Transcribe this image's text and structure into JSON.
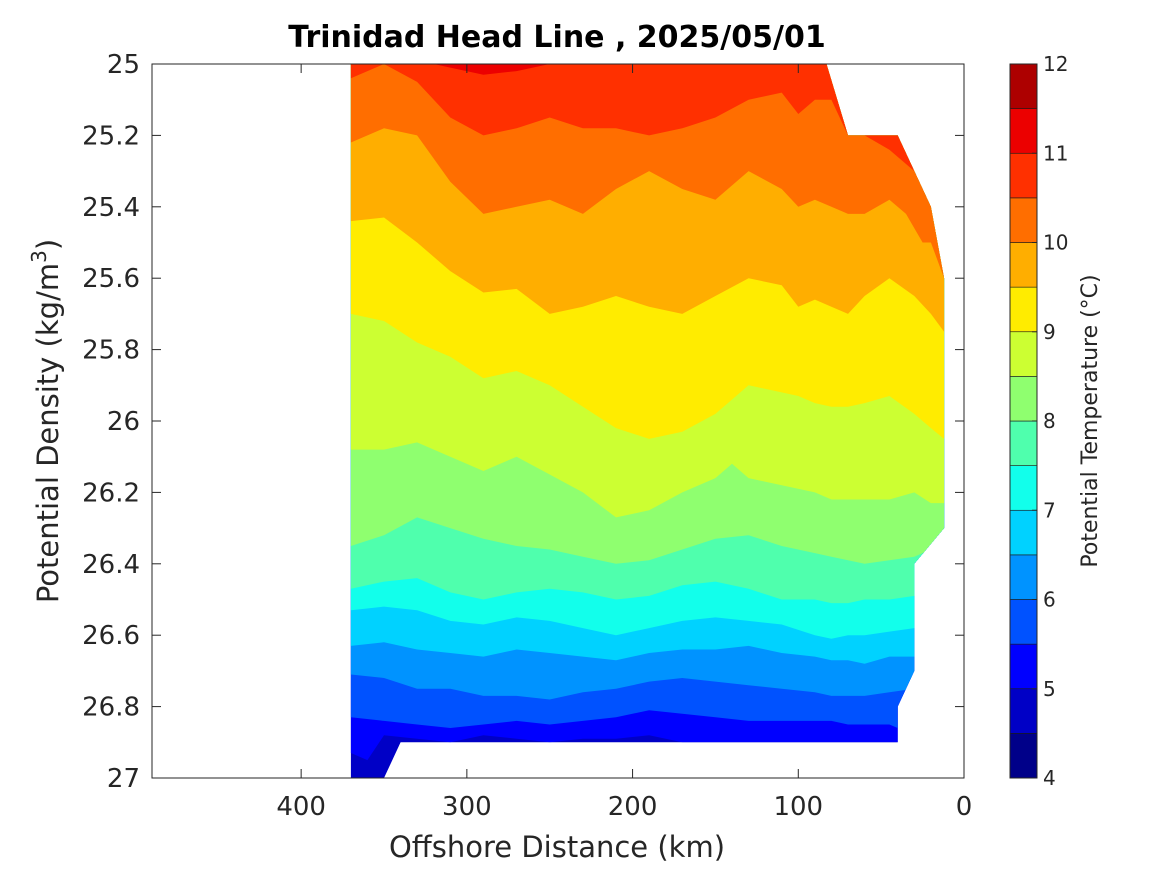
{
  "chart_data": {
    "type": "contourf",
    "title": "Trinidad Head Line , 2025/05/01",
    "xlabel": "Offshore Distance (km)",
    "ylabel_base": "Potential Density (kg/m",
    "ylabel_sup": "3",
    "ylabel_end": ")",
    "colorbar_label": "Potential Temperature (°C)",
    "xlim": [
      490,
      0
    ],
    "ylim": [
      25,
      27
    ],
    "x_ticks": [
      400,
      300,
      200,
      100,
      0
    ],
    "y_ticks": [
      25,
      25.2,
      25.4,
      25.6,
      25.8,
      26,
      26.2,
      26.4,
      26.6,
      26.8,
      27
    ],
    "x_tick_labels": [
      "400",
      "300",
      "200",
      "100",
      "0"
    ],
    "y_tick_labels": [
      "25",
      "25.2",
      "25.4",
      "25.6",
      "25.8",
      "26",
      "26.2",
      "26.4",
      "26.6",
      "26.8",
      "27"
    ],
    "colorbar_range": [
      4,
      12
    ],
    "colorbar_ticks": [
      4,
      5,
      6,
      7,
      8,
      9,
      10,
      11,
      12
    ],
    "colorbar_tick_labels": [
      "4",
      "5",
      "6",
      "7",
      "8",
      "9",
      "10",
      "11",
      "12"
    ],
    "level_step": 0.5,
    "level_colors": [
      "#000089",
      "#0000c6",
      "#0000ff",
      "#0052ff",
      "#0093ff",
      "#00d2ff",
      "#12ffeb",
      "#4fffad",
      "#8fff6f",
      "#ccff32",
      "#ffec00",
      "#ffae00",
      "#ff6e00",
      "#ff3000",
      "#ec0000",
      "#ad0000"
    ],
    "data_extent": {
      "x_min_km": 12,
      "x_max_km": 370,
      "sigma_min": 25,
      "sigma_max": 27,
      "upper_right_edge": [
        [
          83,
          25.0
        ],
        [
          70,
          25.2
        ],
        [
          40,
          25.2
        ],
        [
          20,
          25.4
        ],
        [
          12,
          25.6
        ],
        [
          12,
          26.3
        ],
        [
          30,
          26.4
        ],
        [
          30,
          26.7
        ],
        [
          40,
          26.8
        ],
        [
          40,
          26.9
        ]
      ],
      "bottom_edge": [
        [
          370,
          27.0
        ],
        [
          350,
          27.0
        ],
        [
          340,
          26.9
        ],
        [
          40,
          26.9
        ]
      ]
    },
    "isotherms": [
      {
        "temperature": 11.0,
        "points": [
          [
            370,
            24.99
          ],
          [
            330,
            24.99
          ],
          [
            310,
            25.01
          ],
          [
            290,
            25.03
          ],
          [
            270,
            25.02
          ],
          [
            250,
            25.0
          ],
          [
            230,
            25.0
          ],
          [
            210,
            25.0
          ],
          [
            190,
            25.0
          ],
          [
            170,
            25.0
          ],
          [
            150,
            25.0
          ],
          [
            130,
            25.0
          ],
          [
            110,
            25.0
          ],
          [
            90,
            25.0
          ]
        ]
      },
      {
        "temperature": 10.5,
        "points": [
          [
            370,
            25.04
          ],
          [
            350,
            25.0
          ],
          [
            330,
            25.05
          ],
          [
            310,
            25.15
          ],
          [
            290,
            25.2
          ],
          [
            270,
            25.18
          ],
          [
            250,
            25.15
          ],
          [
            230,
            25.18
          ],
          [
            210,
            25.18
          ],
          [
            190,
            25.2
          ],
          [
            170,
            25.18
          ],
          [
            150,
            25.15
          ],
          [
            130,
            25.1
          ],
          [
            110,
            25.08
          ],
          [
            100,
            25.14
          ],
          [
            90,
            25.1
          ],
          [
            80,
            25.1
          ],
          [
            70,
            25.2
          ],
          [
            60,
            25.2
          ],
          [
            45,
            25.24
          ],
          [
            30,
            25.3
          ],
          [
            20,
            25.4
          ]
        ]
      },
      {
        "temperature": 10.0,
        "points": [
          [
            370,
            25.22
          ],
          [
            350,
            25.18
          ],
          [
            330,
            25.2
          ],
          [
            310,
            25.33
          ],
          [
            290,
            25.42
          ],
          [
            270,
            25.4
          ],
          [
            250,
            25.38
          ],
          [
            230,
            25.42
          ],
          [
            210,
            25.35
          ],
          [
            190,
            25.3
          ],
          [
            170,
            25.35
          ],
          [
            150,
            25.38
          ],
          [
            130,
            25.3
          ],
          [
            110,
            25.35
          ],
          [
            100,
            25.4
          ],
          [
            90,
            25.38
          ],
          [
            80,
            25.4
          ],
          [
            70,
            25.42
          ],
          [
            60,
            25.42
          ],
          [
            45,
            25.38
          ],
          [
            35,
            25.42
          ],
          [
            25,
            25.5
          ],
          [
            20,
            25.5
          ],
          [
            12,
            25.6
          ]
        ]
      },
      {
        "temperature": 9.5,
        "points": [
          [
            370,
            25.44
          ],
          [
            350,
            25.43
          ],
          [
            330,
            25.5
          ],
          [
            310,
            25.58
          ],
          [
            290,
            25.64
          ],
          [
            270,
            25.63
          ],
          [
            250,
            25.7
          ],
          [
            230,
            25.68
          ],
          [
            210,
            25.65
          ],
          [
            190,
            25.68
          ],
          [
            170,
            25.7
          ],
          [
            150,
            25.65
          ],
          [
            130,
            25.6
          ],
          [
            110,
            25.62
          ],
          [
            100,
            25.68
          ],
          [
            90,
            25.66
          ],
          [
            80,
            25.68
          ],
          [
            70,
            25.7
          ],
          [
            60,
            25.65
          ],
          [
            45,
            25.6
          ],
          [
            30,
            25.65
          ],
          [
            20,
            25.7
          ],
          [
            12,
            25.75
          ]
        ]
      },
      {
        "temperature": 9.0,
        "points": [
          [
            370,
            25.7
          ],
          [
            350,
            25.72
          ],
          [
            330,
            25.78
          ],
          [
            310,
            25.82
          ],
          [
            290,
            25.88
          ],
          [
            270,
            25.86
          ],
          [
            250,
            25.9
          ],
          [
            230,
            25.96
          ],
          [
            210,
            26.02
          ],
          [
            190,
            26.05
          ],
          [
            170,
            26.03
          ],
          [
            150,
            25.98
          ],
          [
            130,
            25.9
          ],
          [
            110,
            25.92
          ],
          [
            100,
            25.93
          ],
          [
            90,
            25.95
          ],
          [
            80,
            25.96
          ],
          [
            70,
            25.96
          ],
          [
            60,
            25.95
          ],
          [
            45,
            25.93
          ],
          [
            30,
            25.98
          ],
          [
            20,
            26.02
          ],
          [
            12,
            26.05
          ]
        ]
      },
      {
        "temperature": 8.5,
        "points": [
          [
            370,
            26.08
          ],
          [
            350,
            26.08
          ],
          [
            330,
            26.06
          ],
          [
            310,
            26.1
          ],
          [
            290,
            26.14
          ],
          [
            270,
            26.1
          ],
          [
            250,
            26.15
          ],
          [
            230,
            26.2
          ],
          [
            210,
            26.27
          ],
          [
            190,
            26.25
          ],
          [
            170,
            26.2
          ],
          [
            150,
            26.16
          ],
          [
            140,
            26.12
          ],
          [
            130,
            26.16
          ],
          [
            110,
            26.18
          ],
          [
            90,
            26.2
          ],
          [
            80,
            26.22
          ],
          [
            70,
            26.22
          ],
          [
            60,
            26.22
          ],
          [
            45,
            26.22
          ],
          [
            30,
            26.2
          ],
          [
            20,
            26.23
          ],
          [
            12,
            26.23
          ]
        ]
      },
      {
        "temperature": 8.0,
        "points": [
          [
            370,
            26.35
          ],
          [
            350,
            26.32
          ],
          [
            330,
            26.27
          ],
          [
            310,
            26.3
          ],
          [
            290,
            26.33
          ],
          [
            270,
            26.35
          ],
          [
            250,
            26.36
          ],
          [
            230,
            26.38
          ],
          [
            210,
            26.4
          ],
          [
            190,
            26.39
          ],
          [
            170,
            26.36
          ],
          [
            150,
            26.33
          ],
          [
            130,
            26.32
          ],
          [
            110,
            26.35
          ],
          [
            90,
            26.37
          ],
          [
            80,
            26.38
          ],
          [
            70,
            26.39
          ],
          [
            60,
            26.4
          ],
          [
            45,
            26.39
          ],
          [
            30,
            26.38
          ],
          [
            20,
            26.36
          ],
          [
            12,
            26.3
          ]
        ]
      },
      {
        "temperature": 7.5,
        "points": [
          [
            370,
            26.47
          ],
          [
            350,
            26.45
          ],
          [
            330,
            26.44
          ],
          [
            310,
            26.48
          ],
          [
            290,
            26.5
          ],
          [
            270,
            26.48
          ],
          [
            250,
            26.47
          ],
          [
            230,
            26.48
          ],
          [
            210,
            26.5
          ],
          [
            190,
            26.49
          ],
          [
            170,
            26.46
          ],
          [
            150,
            26.45
          ],
          [
            130,
            26.47
          ],
          [
            110,
            26.5
          ],
          [
            90,
            26.5
          ],
          [
            80,
            26.51
          ],
          [
            70,
            26.51
          ],
          [
            60,
            26.5
          ],
          [
            45,
            26.5
          ],
          [
            30,
            26.49
          ]
        ]
      },
      {
        "temperature": 7.0,
        "points": [
          [
            370,
            26.53
          ],
          [
            350,
            26.52
          ],
          [
            330,
            26.53
          ],
          [
            310,
            26.56
          ],
          [
            290,
            26.57
          ],
          [
            270,
            26.55
          ],
          [
            250,
            26.56
          ],
          [
            230,
            26.58
          ],
          [
            210,
            26.6
          ],
          [
            190,
            26.58
          ],
          [
            170,
            26.56
          ],
          [
            150,
            26.55
          ],
          [
            130,
            26.56
          ],
          [
            110,
            26.57
          ],
          [
            90,
            26.6
          ],
          [
            80,
            26.61
          ],
          [
            70,
            26.6
          ],
          [
            60,
            26.6
          ],
          [
            45,
            26.59
          ],
          [
            30,
            26.58
          ]
        ]
      },
      {
        "temperature": 6.5,
        "points": [
          [
            370,
            26.63
          ],
          [
            350,
            26.62
          ],
          [
            330,
            26.64
          ],
          [
            310,
            26.65
          ],
          [
            290,
            26.66
          ],
          [
            270,
            26.64
          ],
          [
            250,
            26.65
          ],
          [
            230,
            26.66
          ],
          [
            210,
            26.67
          ],
          [
            190,
            26.65
          ],
          [
            170,
            26.64
          ],
          [
            150,
            26.64
          ],
          [
            130,
            26.63
          ],
          [
            110,
            26.65
          ],
          [
            90,
            26.66
          ],
          [
            80,
            26.67
          ],
          [
            70,
            26.67
          ],
          [
            60,
            26.68
          ],
          [
            45,
            26.66
          ],
          [
            30,
            26.66
          ]
        ]
      },
      {
        "temperature": 6.0,
        "points": [
          [
            370,
            26.71
          ],
          [
            350,
            26.72
          ],
          [
            330,
            26.75
          ],
          [
            310,
            26.75
          ],
          [
            290,
            26.77
          ],
          [
            270,
            26.77
          ],
          [
            250,
            26.78
          ],
          [
            230,
            26.76
          ],
          [
            210,
            26.75
          ],
          [
            190,
            26.73
          ],
          [
            170,
            26.72
          ],
          [
            150,
            26.73
          ],
          [
            130,
            26.74
          ],
          [
            110,
            26.75
          ],
          [
            90,
            26.76
          ],
          [
            80,
            26.77
          ],
          [
            70,
            26.77
          ],
          [
            60,
            26.77
          ],
          [
            45,
            26.76
          ],
          [
            30,
            26.75
          ]
        ]
      },
      {
        "temperature": 5.5,
        "points": [
          [
            370,
            26.83
          ],
          [
            350,
            26.84
          ],
          [
            330,
            26.85
          ],
          [
            310,
            26.86
          ],
          [
            290,
            26.85
          ],
          [
            270,
            26.84
          ],
          [
            250,
            26.85
          ],
          [
            230,
            26.84
          ],
          [
            210,
            26.83
          ],
          [
            190,
            26.81
          ],
          [
            170,
            26.82
          ],
          [
            150,
            26.83
          ],
          [
            130,
            26.84
          ],
          [
            110,
            26.84
          ],
          [
            90,
            26.84
          ],
          [
            80,
            26.84
          ],
          [
            70,
            26.85
          ],
          [
            60,
            26.85
          ],
          [
            45,
            26.85
          ],
          [
            40,
            26.86
          ]
        ]
      },
      {
        "temperature": 5.0,
        "points": [
          [
            370,
            26.93
          ],
          [
            360,
            26.95
          ],
          [
            350,
            26.88
          ],
          [
            330,
            26.89
          ],
          [
            310,
            26.9
          ],
          [
            290,
            26.88
          ],
          [
            270,
            26.89
          ],
          [
            250,
            26.9
          ],
          [
            230,
            26.89
          ],
          [
            210,
            26.89
          ],
          [
            190,
            26.88
          ],
          [
            170,
            26.9
          ],
          [
            150,
            26.9
          ],
          [
            40,
            26.9
          ]
        ]
      }
    ]
  }
}
